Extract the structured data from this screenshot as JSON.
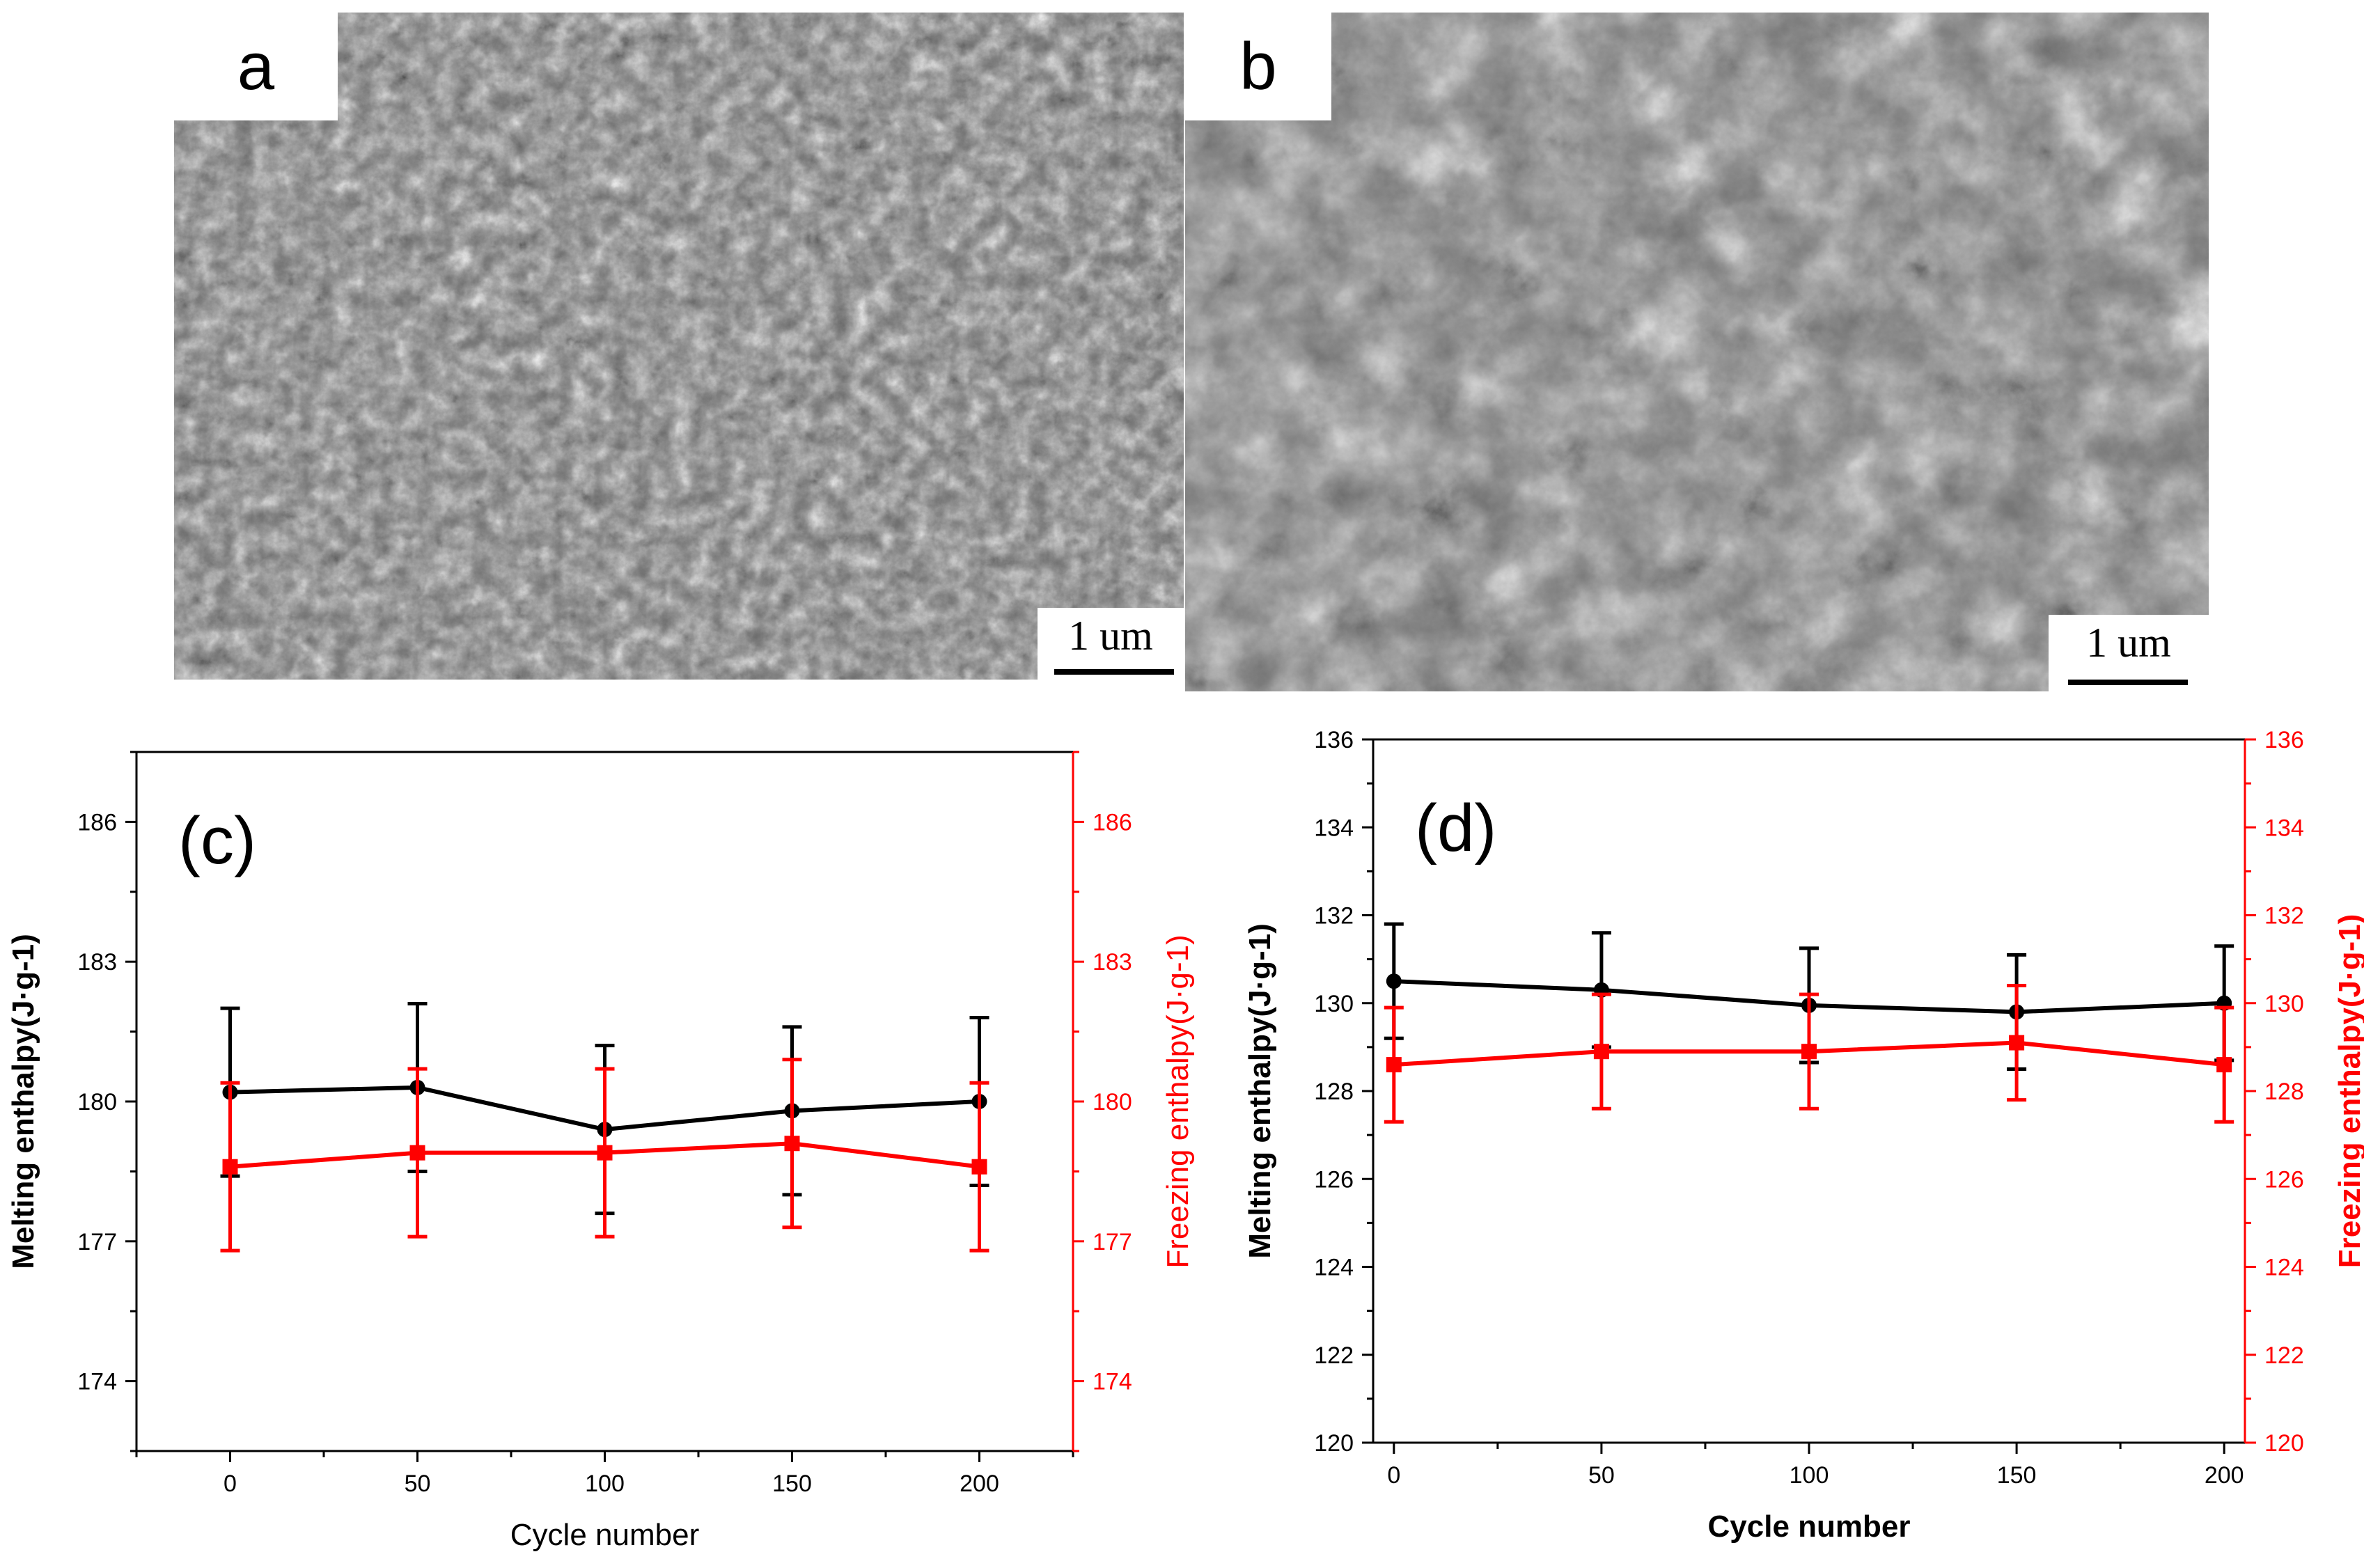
{
  "panels": {
    "a": {
      "label": "a",
      "scale_text": "1 um"
    },
    "b": {
      "label": "b",
      "scale_text": "1 um"
    }
  },
  "colors": {
    "melting": "#000000",
    "freezing": "#ff0000",
    "sem_bg": "#6e6e6e"
  },
  "chart_data": [
    {
      "id": "c",
      "type": "line",
      "panel_label": "(c)",
      "xlabel": "Cycle number",
      "ylabel_left": "Melting enthalpy(J·g-1)",
      "ylabel_right": "Freezing enthalpy(J·g-1)",
      "xlim": [
        -25,
        225
      ],
      "xticks": [
        0,
        50,
        100,
        150,
        200
      ],
      "ylim": [
        172.5,
        187.5
      ],
      "yticks": [
        174,
        177,
        180,
        183,
        186
      ],
      "series": [
        {
          "name": "Melting enthalpy",
          "axis": "left",
          "color": "#000000",
          "marker": "circle",
          "x": [
            0,
            50,
            100,
            150,
            200
          ],
          "values": [
            180.2,
            180.3,
            179.4,
            179.8,
            180.0
          ],
          "errors": [
            1.8,
            1.8,
            1.8,
            1.8,
            1.8
          ]
        },
        {
          "name": "Freezing enthalpy",
          "axis": "right",
          "color": "#ff0000",
          "marker": "square",
          "x": [
            0,
            50,
            100,
            150,
            200
          ],
          "values": [
            178.6,
            178.9,
            178.9,
            179.1,
            178.6
          ],
          "errors": [
            1.8,
            1.8,
            1.8,
            1.8,
            1.8
          ]
        }
      ]
    },
    {
      "id": "d",
      "type": "line",
      "panel_label": "(d)",
      "xlabel": "Cycle number",
      "ylabel_left": "Melting enthalpy(J·g-1)",
      "ylabel_right": "Freezing enthalpy(J·g-1)",
      "xlim": [
        -5,
        205
      ],
      "xticks": [
        0,
        50,
        100,
        150,
        200
      ],
      "ylim": [
        120,
        136
      ],
      "yticks": [
        120,
        122,
        124,
        126,
        128,
        130,
        132,
        134,
        136
      ],
      "series": [
        {
          "name": "Melting enthalpy",
          "axis": "left",
          "color": "#000000",
          "marker": "circle",
          "x": [
            0,
            50,
            100,
            150,
            200
          ],
          "values": [
            130.5,
            130.3,
            129.95,
            129.8,
            130.0
          ],
          "errors": [
            1.3,
            1.3,
            1.3,
            1.3,
            1.3
          ]
        },
        {
          "name": "Freezing enthalpy",
          "axis": "right",
          "color": "#ff0000",
          "marker": "square",
          "x": [
            0,
            50,
            100,
            150,
            200
          ],
          "values": [
            128.6,
            128.9,
            128.9,
            129.1,
            128.6
          ],
          "errors": [
            1.3,
            1.3,
            1.3,
            1.3,
            1.3
          ]
        }
      ]
    }
  ]
}
